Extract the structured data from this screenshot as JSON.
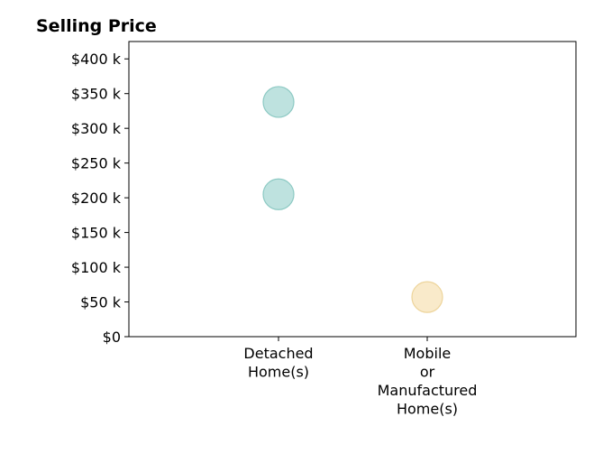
{
  "chart_data": {
    "type": "scatter",
    "title": "Selling Price",
    "xlabel": "",
    "ylabel": "",
    "categories": [
      [
        "Detached",
        "Home(s)"
      ],
      [
        "Mobile",
        "or",
        "Manufactured",
        "Home(s)"
      ]
    ],
    "y_ticks": [
      "$0",
      "$50 k",
      "$100 k",
      "$150 k",
      "$200 k",
      "$250 k",
      "$300 k",
      "$350 k",
      "$400 k"
    ],
    "y_tick_values": [
      0,
      50000,
      100000,
      150000,
      200000,
      250000,
      300000,
      350000,
      400000
    ],
    "ylim": [
      0,
      425000
    ],
    "grid": false,
    "points": [
      {
        "category": 0,
        "y": 338000,
        "color": "#a8d8d4"
      },
      {
        "category": 0,
        "y": 205000,
        "color": "#a8d8d4"
      },
      {
        "category": 1,
        "y": 57000,
        "color": "#f7e3b8"
      }
    ],
    "colors": {
      "detached": "#a8d8d4",
      "mobile": "#f7e3b8"
    }
  }
}
